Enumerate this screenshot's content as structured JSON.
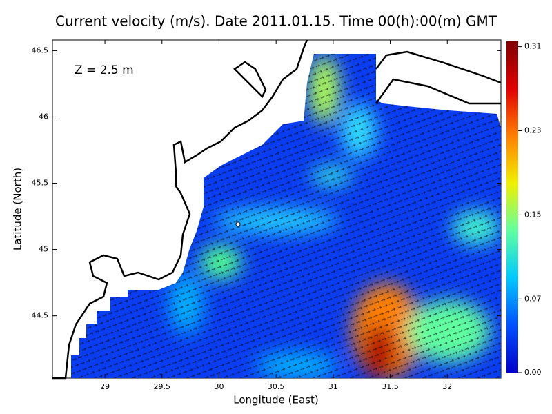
{
  "chart_data": {
    "type": "map",
    "title": "Current velocity (m/s). Date 2011.01.15. Time 00(h):00(m) GMT",
    "x_label": "Longitude (East)",
    "y_label": "Latitude (North)",
    "annotation": "Z = 2.5 m",
    "xlim": [
      28.54,
      32.47
    ],
    "ylim": [
      44.03,
      46.58
    ],
    "xticks": [
      29,
      29.5,
      30,
      30.5,
      31,
      31.5,
      32
    ],
    "yticks": [
      44.5,
      45,
      45.5,
      46,
      46.5
    ],
    "colorbar": {
      "lim": [
        0,
        0.315
      ],
      "ticks": [
        {
          "value": 0,
          "label": "0.00"
        },
        {
          "value": 0.07,
          "label": "0.07"
        },
        {
          "value": 0.15,
          "label": "0.15"
        },
        {
          "value": 0.23,
          "label": "0.23"
        },
        {
          "value": 0.31,
          "label": "0.31"
        }
      ],
      "colormap": [
        "#0000c8",
        "#0050ff",
        "#00c8ff",
        "#60ffa0",
        "#f0f000",
        "#ff8000",
        "#e00000",
        "#800000"
      ]
    }
  }
}
